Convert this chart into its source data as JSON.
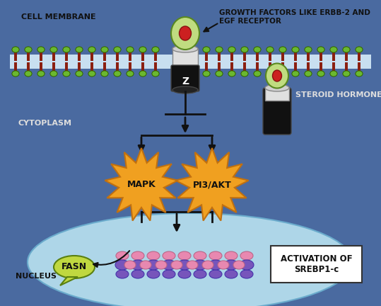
{
  "bg_outer": "#d0d0d0",
  "bg_cell": "#4a6aa0",
  "bg_nucleus": "#aed6e8",
  "lipid_head_color": "#6ab830",
  "lipid_tail_color": "#8b2010",
  "receptor_outer": "#c0dc80",
  "receptor_inner_red": "#cc2020",
  "arrow_color": "#111111",
  "mapk_color": "#f0a020",
  "pi3akt_color": "#f0a020",
  "fasn_color": "#c0d840",
  "dna_purple": "#7755bb",
  "dna_pink": "#e888b0",
  "label_cell_membrane": "CELL MEMBRANE",
  "label_cytoplasm": "CYTOPLASM",
  "label_nucleus": "NUCLEUS",
  "label_growth": "GROWTH FACTORS LIKE ERBB-2 AND\nEGF RECEPTOR",
  "label_steroid": "STEROID HORMONES",
  "label_mapk": "MAPK",
  "label_pi3akt": "PI3/AKT",
  "label_fasn": "FASN",
  "label_activation": "ACTIVATION OF\nSREBP1-c"
}
